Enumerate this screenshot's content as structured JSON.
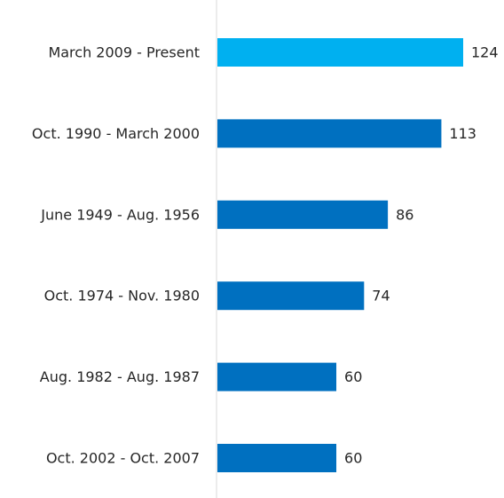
{
  "chart_data": {
    "type": "bar",
    "orientation": "horizontal",
    "title": "",
    "xlabel": "",
    "ylabel": "",
    "categories": [
      "March 2009 - Present",
      "Oct. 1990 - March 2000",
      "June 1949 - Aug. 1956",
      "Oct. 1974 - Nov. 1980",
      "Aug. 1982 - Aug. 1987",
      "Oct. 2002 - Oct. 2007"
    ],
    "values": [
      124,
      113,
      86,
      74,
      60,
      60
    ],
    "data_labels": [
      "124",
      "113",
      "86",
      "74",
      "60",
      "60"
    ],
    "highlight_index": 0,
    "grid": false,
    "legend": "none",
    "colors": {
      "bar": "#0070c0",
      "highlight": "#00b0f0",
      "axis": "#d9d9d9",
      "text": "#262626"
    }
  }
}
